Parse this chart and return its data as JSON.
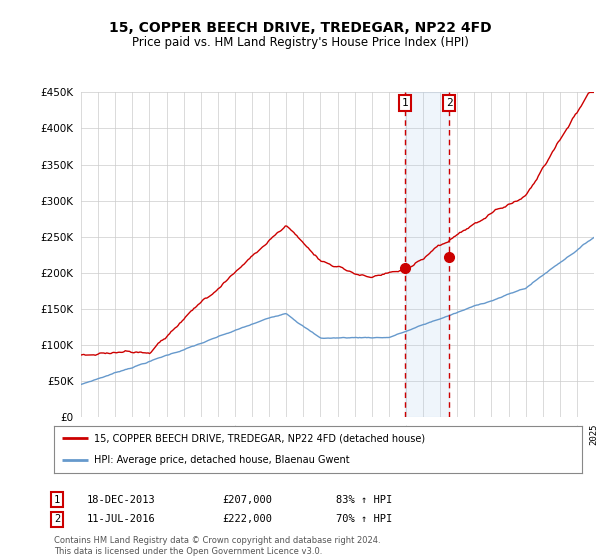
{
  "title": "15, COPPER BEECH DRIVE, TREDEGAR, NP22 4FD",
  "subtitle": "Price paid vs. HM Land Registry's House Price Index (HPI)",
  "legend_line1": "15, COPPER BEECH DRIVE, TREDEGAR, NP22 4FD (detached house)",
  "legend_line2": "HPI: Average price, detached house, Blaenau Gwent",
  "annotation1_label": "1",
  "annotation1_date": "18-DEC-2013",
  "annotation1_price": "£207,000",
  "annotation1_hpi": "83% ↑ HPI",
  "annotation2_label": "2",
  "annotation2_date": "11-JUL-2016",
  "annotation2_price": "£222,000",
  "annotation2_hpi": "70% ↑ HPI",
  "footnote": "Contains HM Land Registry data © Crown copyright and database right 2024.\nThis data is licensed under the Open Government Licence v3.0.",
  "sale1_x": 2013.96,
  "sale1_y": 207000,
  "sale2_x": 2016.53,
  "sale2_y": 222000,
  "ylim": [
    0,
    450000
  ],
  "xlim_start": 1995,
  "xlim_end": 2025,
  "hpi_color": "#6699cc",
  "price_color": "#cc0000",
  "highlight_color": "#ddeeff",
  "background_color": "#ffffff",
  "grid_color": "#cccccc"
}
